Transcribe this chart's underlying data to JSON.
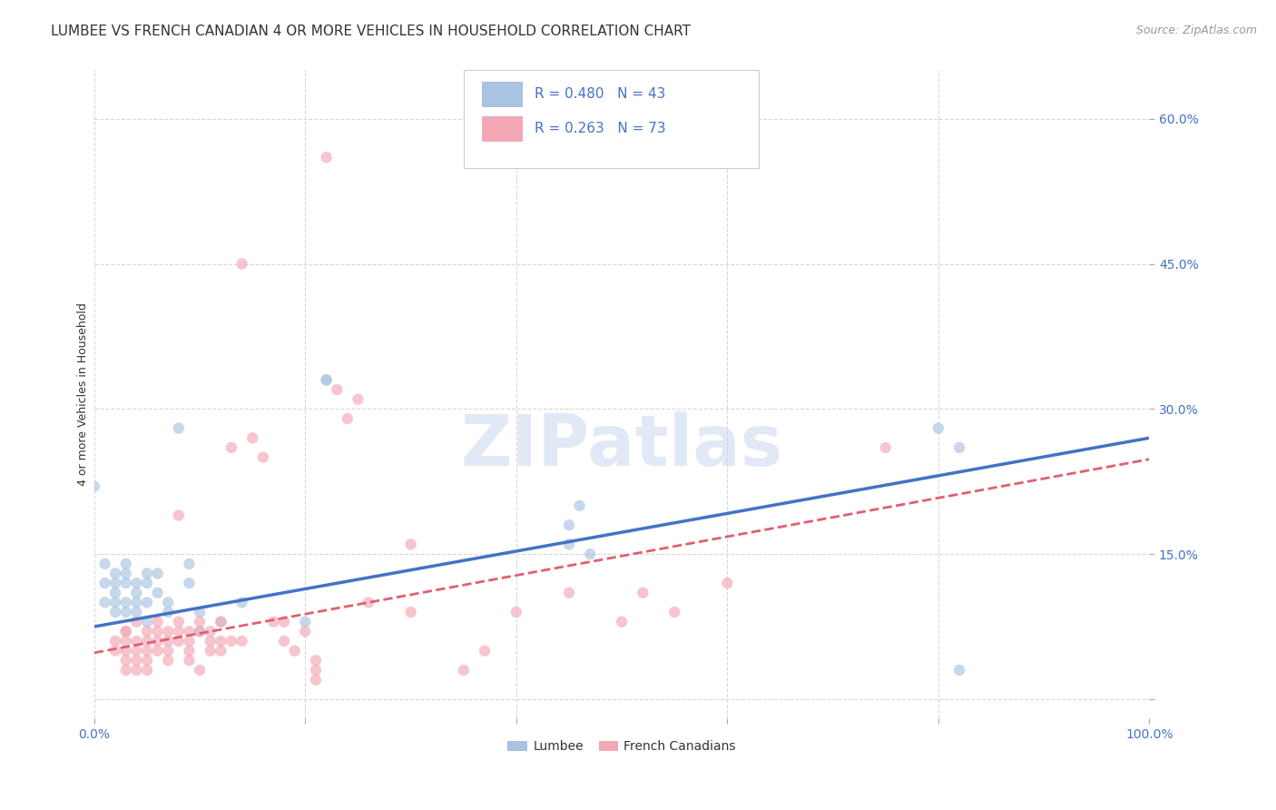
{
  "title": "LUMBEE VS FRENCH CANADIAN 4 OR MORE VEHICLES IN HOUSEHOLD CORRELATION CHART",
  "source": "Source: ZipAtlas.com",
  "ylabel": "4 or more Vehicles in Household",
  "xlim": [
    0,
    1.0
  ],
  "ylim": [
    -0.02,
    0.65
  ],
  "xticks": [
    0.0,
    0.2,
    0.4,
    0.6,
    0.8,
    1.0
  ],
  "xticklabels": [
    "0.0%",
    "",
    "",
    "",
    "",
    "100.0%"
  ],
  "yticks": [
    0.0,
    0.15,
    0.3,
    0.45,
    0.6
  ],
  "yticklabels": [
    "",
    "15.0%",
    "30.0%",
    "45.0%",
    "60.0%"
  ],
  "background_color": "#ffffff",
  "grid_color": "#d8d8d8",
  "lumbee_color": "#a8c4e0",
  "french_color": "#f4a7b5",
  "lumbee_line_color": "#4472c4",
  "french_line_color": "#e06070",
  "R_lumbee": 0.48,
  "N_lumbee": 43,
  "R_french": 0.263,
  "N_french": 73,
  "lumbee_scatter": [
    [
      0.0,
      0.22
    ],
    [
      0.01,
      0.12
    ],
    [
      0.01,
      0.14
    ],
    [
      0.01,
      0.1
    ],
    [
      0.02,
      0.13
    ],
    [
      0.02,
      0.11
    ],
    [
      0.02,
      0.12
    ],
    [
      0.02,
      0.1
    ],
    [
      0.02,
      0.09
    ],
    [
      0.03,
      0.14
    ],
    [
      0.03,
      0.12
    ],
    [
      0.03,
      0.1
    ],
    [
      0.03,
      0.09
    ],
    [
      0.03,
      0.13
    ],
    [
      0.04,
      0.11
    ],
    [
      0.04,
      0.12
    ],
    [
      0.04,
      0.1
    ],
    [
      0.04,
      0.09
    ],
    [
      0.05,
      0.13
    ],
    [
      0.05,
      0.1
    ],
    [
      0.05,
      0.08
    ],
    [
      0.05,
      0.12
    ],
    [
      0.06,
      0.11
    ],
    [
      0.06,
      0.13
    ],
    [
      0.07,
      0.1
    ],
    [
      0.07,
      0.09
    ],
    [
      0.08,
      0.28
    ],
    [
      0.09,
      0.14
    ],
    [
      0.09,
      0.12
    ],
    [
      0.1,
      0.07
    ],
    [
      0.1,
      0.09
    ],
    [
      0.12,
      0.08
    ],
    [
      0.14,
      0.1
    ],
    [
      0.2,
      0.08
    ],
    [
      0.22,
      0.33
    ],
    [
      0.22,
      0.33
    ],
    [
      0.45,
      0.16
    ],
    [
      0.45,
      0.18
    ],
    [
      0.46,
      0.2
    ],
    [
      0.47,
      0.15
    ],
    [
      0.8,
      0.28
    ],
    [
      0.82,
      0.26
    ],
    [
      0.82,
      0.03
    ]
  ],
  "french_scatter": [
    [
      0.02,
      0.05
    ],
    [
      0.02,
      0.06
    ],
    [
      0.03,
      0.07
    ],
    [
      0.03,
      0.06
    ],
    [
      0.03,
      0.05
    ],
    [
      0.03,
      0.04
    ],
    [
      0.03,
      0.03
    ],
    [
      0.03,
      0.07
    ],
    [
      0.04,
      0.06
    ],
    [
      0.04,
      0.05
    ],
    [
      0.04,
      0.04
    ],
    [
      0.04,
      0.03
    ],
    [
      0.04,
      0.08
    ],
    [
      0.05,
      0.07
    ],
    [
      0.05,
      0.06
    ],
    [
      0.05,
      0.05
    ],
    [
      0.05,
      0.04
    ],
    [
      0.05,
      0.03
    ],
    [
      0.06,
      0.08
    ],
    [
      0.06,
      0.07
    ],
    [
      0.06,
      0.06
    ],
    [
      0.06,
      0.05
    ],
    [
      0.07,
      0.07
    ],
    [
      0.07,
      0.06
    ],
    [
      0.07,
      0.05
    ],
    [
      0.07,
      0.04
    ],
    [
      0.08,
      0.19
    ],
    [
      0.08,
      0.08
    ],
    [
      0.08,
      0.07
    ],
    [
      0.08,
      0.06
    ],
    [
      0.09,
      0.07
    ],
    [
      0.09,
      0.06
    ],
    [
      0.09,
      0.05
    ],
    [
      0.09,
      0.04
    ],
    [
      0.1,
      0.08
    ],
    [
      0.1,
      0.03
    ],
    [
      0.1,
      0.07
    ],
    [
      0.11,
      0.07
    ],
    [
      0.11,
      0.06
    ],
    [
      0.11,
      0.05
    ],
    [
      0.12,
      0.08
    ],
    [
      0.12,
      0.06
    ],
    [
      0.12,
      0.05
    ],
    [
      0.13,
      0.06
    ],
    [
      0.13,
      0.26
    ],
    [
      0.14,
      0.45
    ],
    [
      0.14,
      0.06
    ],
    [
      0.15,
      0.27
    ],
    [
      0.16,
      0.25
    ],
    [
      0.17,
      0.08
    ],
    [
      0.18,
      0.08
    ],
    [
      0.18,
      0.06
    ],
    [
      0.19,
      0.05
    ],
    [
      0.2,
      0.07
    ],
    [
      0.21,
      0.04
    ],
    [
      0.21,
      0.03
    ],
    [
      0.21,
      0.02
    ],
    [
      0.22,
      0.56
    ],
    [
      0.23,
      0.32
    ],
    [
      0.24,
      0.29
    ],
    [
      0.25,
      0.31
    ],
    [
      0.26,
      0.1
    ],
    [
      0.3,
      0.16
    ],
    [
      0.3,
      0.09
    ],
    [
      0.35,
      0.03
    ],
    [
      0.37,
      0.05
    ],
    [
      0.4,
      0.09
    ],
    [
      0.45,
      0.11
    ],
    [
      0.5,
      0.08
    ],
    [
      0.52,
      0.11
    ],
    [
      0.55,
      0.09
    ],
    [
      0.6,
      0.12
    ],
    [
      0.75,
      0.26
    ]
  ],
  "lumbee_line": [
    [
      0.0,
      0.075
    ],
    [
      1.0,
      0.27
    ]
  ],
  "french_line": [
    [
      0.0,
      0.048
    ],
    [
      1.0,
      0.248
    ]
  ],
  "marker_size": 80,
  "marker_alpha": 0.65,
  "legend_labels": [
    "Lumbee",
    "French Canadians"
  ],
  "watermark": "ZIPatlas",
  "title_fontsize": 11,
  "axis_label_fontsize": 9,
  "tick_fontsize": 10,
  "legend_fontsize": 11,
  "source_fontsize": 9,
  "tick_color": "#4472c4"
}
